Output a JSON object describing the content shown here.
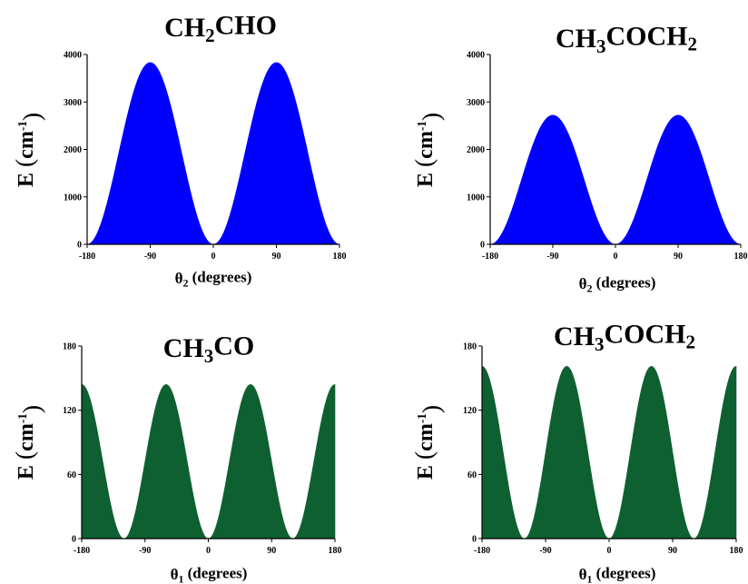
{
  "chart_data": [
    {
      "type": "area",
      "title": "CH2CHO",
      "title_parts": [
        {
          "t": "CH"
        },
        {
          "t": "2",
          "sub": true
        },
        {
          "t": "CHO"
        }
      ],
      "xlabel": "θ2 (degrees)",
      "xlabel_parts": [
        {
          "t": "θ"
        },
        {
          "t": "2",
          "sub": true
        },
        {
          "t": " (degrees)"
        }
      ],
      "ylabel": "E (cm-1)",
      "ylabel_parts": [
        {
          "t": "E "
        },
        {
          "t": "(",
          "big": true
        },
        {
          "t": "cm"
        },
        {
          "t": "-1",
          "sup": true
        },
        {
          "t": ")",
          "big": true
        }
      ],
      "xlim": [
        -180,
        180
      ],
      "ylim": [
        0,
        4000
      ],
      "xticks": [
        -180,
        -90,
        0,
        90,
        180
      ],
      "yticks": [
        0,
        1000,
        2000,
        3000,
        4000
      ],
      "function": "sin2",
      "amplitude": 3830,
      "periods": 1,
      "color": "#0000ff"
    },
    {
      "type": "area",
      "title": "CH3COCH2",
      "title_parts": [
        {
          "t": "CH"
        },
        {
          "t": "3",
          "sub": true
        },
        {
          "t": "COCH"
        },
        {
          "t": "2",
          "sub": true
        }
      ],
      "xlabel": "θ2 (degrees)",
      "xlabel_parts": [
        {
          "t": "θ"
        },
        {
          "t": "2",
          "sub": true
        },
        {
          "t": " (degrees)"
        }
      ],
      "ylabel": "E (cm-1)",
      "ylabel_parts": [
        {
          "t": "E "
        },
        {
          "t": "(",
          "big": true
        },
        {
          "t": "cm"
        },
        {
          "t": "-1",
          "sup": true
        },
        {
          "t": ")",
          "big": true
        }
      ],
      "xlim": [
        -180,
        180
      ],
      "ylim": [
        0,
        4000
      ],
      "xticks": [
        -180,
        -90,
        0,
        90,
        180
      ],
      "yticks": [
        0,
        1000,
        2000,
        3000,
        4000
      ],
      "function": "sin2",
      "amplitude": 2720,
      "periods": 1,
      "color": "#0000ff"
    },
    {
      "type": "area",
      "title": "CH3CO",
      "title_parts": [
        {
          "t": "CH"
        },
        {
          "t": "3",
          "sub": true
        },
        {
          "t": "CO"
        }
      ],
      "xlabel": "θ1 (degrees)",
      "xlabel_parts": [
        {
          "t": "θ"
        },
        {
          "t": "1",
          "sub": true
        },
        {
          "t": " (degrees)"
        }
      ],
      "ylabel": "E (cm-1)",
      "ylabel_parts": [
        {
          "t": "E "
        },
        {
          "t": "(",
          "big": true
        },
        {
          "t": "cm"
        },
        {
          "t": "-1",
          "sup": true
        },
        {
          "t": ")",
          "big": true
        }
      ],
      "xlim": [
        -180,
        180
      ],
      "ylim": [
        0,
        180
      ],
      "xticks": [
        -180,
        -90,
        0,
        90,
        180
      ],
      "yticks": [
        0,
        60,
        120,
        180
      ],
      "function": "sin2",
      "amplitude": 144,
      "periods": 1.5,
      "color": "#0e6030"
    },
    {
      "type": "area",
      "title": "CH3COCH2",
      "title_parts": [
        {
          "t": "CH"
        },
        {
          "t": "3",
          "sub": true
        },
        {
          "t": "COCH"
        },
        {
          "t": "2",
          "sub": true
        }
      ],
      "xlabel": "θ1 (degrees)",
      "xlabel_parts": [
        {
          "t": "θ"
        },
        {
          "t": "1",
          "sub": true
        },
        {
          "t": " (degrees)"
        }
      ],
      "ylabel": "E (cm-1)",
      "ylabel_parts": [
        {
          "t": "E "
        },
        {
          "t": "(",
          "big": true
        },
        {
          "t": "cm"
        },
        {
          "t": "-1",
          "sup": true
        },
        {
          "t": ")",
          "big": true
        }
      ],
      "xlim": [
        -180,
        180
      ],
      "ylim": [
        0,
        180
      ],
      "xticks": [
        -180,
        -90,
        0,
        90,
        180
      ],
      "yticks": [
        0,
        60,
        120,
        180
      ],
      "function": "sin2",
      "amplitude": 161,
      "periods": 1.5,
      "color": "#0e6030"
    }
  ]
}
